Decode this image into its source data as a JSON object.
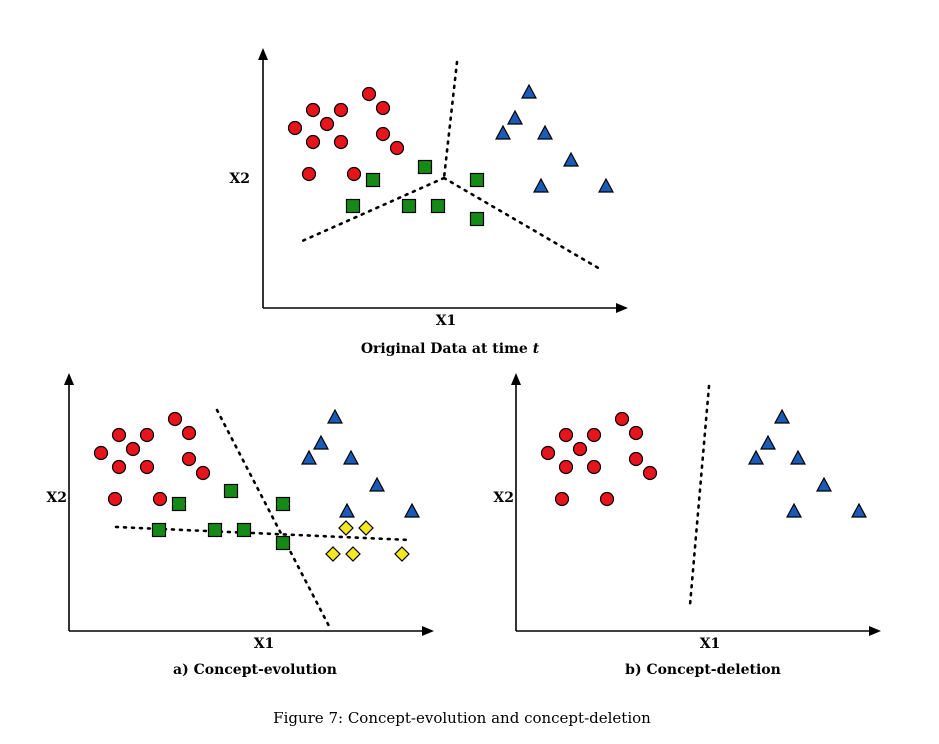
{
  "colors": {
    "class_circle": "#e8141b",
    "class_triangle": "#1a5bb8",
    "class_square": "#168a16",
    "class_diamond": "#f5e81c",
    "outline": "#000000"
  },
  "figure_caption": "Figure 7: Concept-evolution and concept-deletion",
  "panels": [
    {
      "id": "original",
      "xlabel": "X1",
      "ylabel": "X2",
      "caption_prefix": "Original Data at time ",
      "caption_var": "t",
      "classes": [
        "circle",
        "triangle",
        "square"
      ]
    },
    {
      "id": "evolution",
      "xlabel": "X1",
      "ylabel": "X2",
      "caption": "a) Concept-evolution",
      "classes": [
        "circle",
        "triangle",
        "square",
        "diamond"
      ]
    },
    {
      "id": "deletion",
      "xlabel": "X1",
      "ylabel": "X2",
      "caption": "b) Concept-deletion",
      "classes": [
        "circle",
        "triangle"
      ]
    }
  ]
}
